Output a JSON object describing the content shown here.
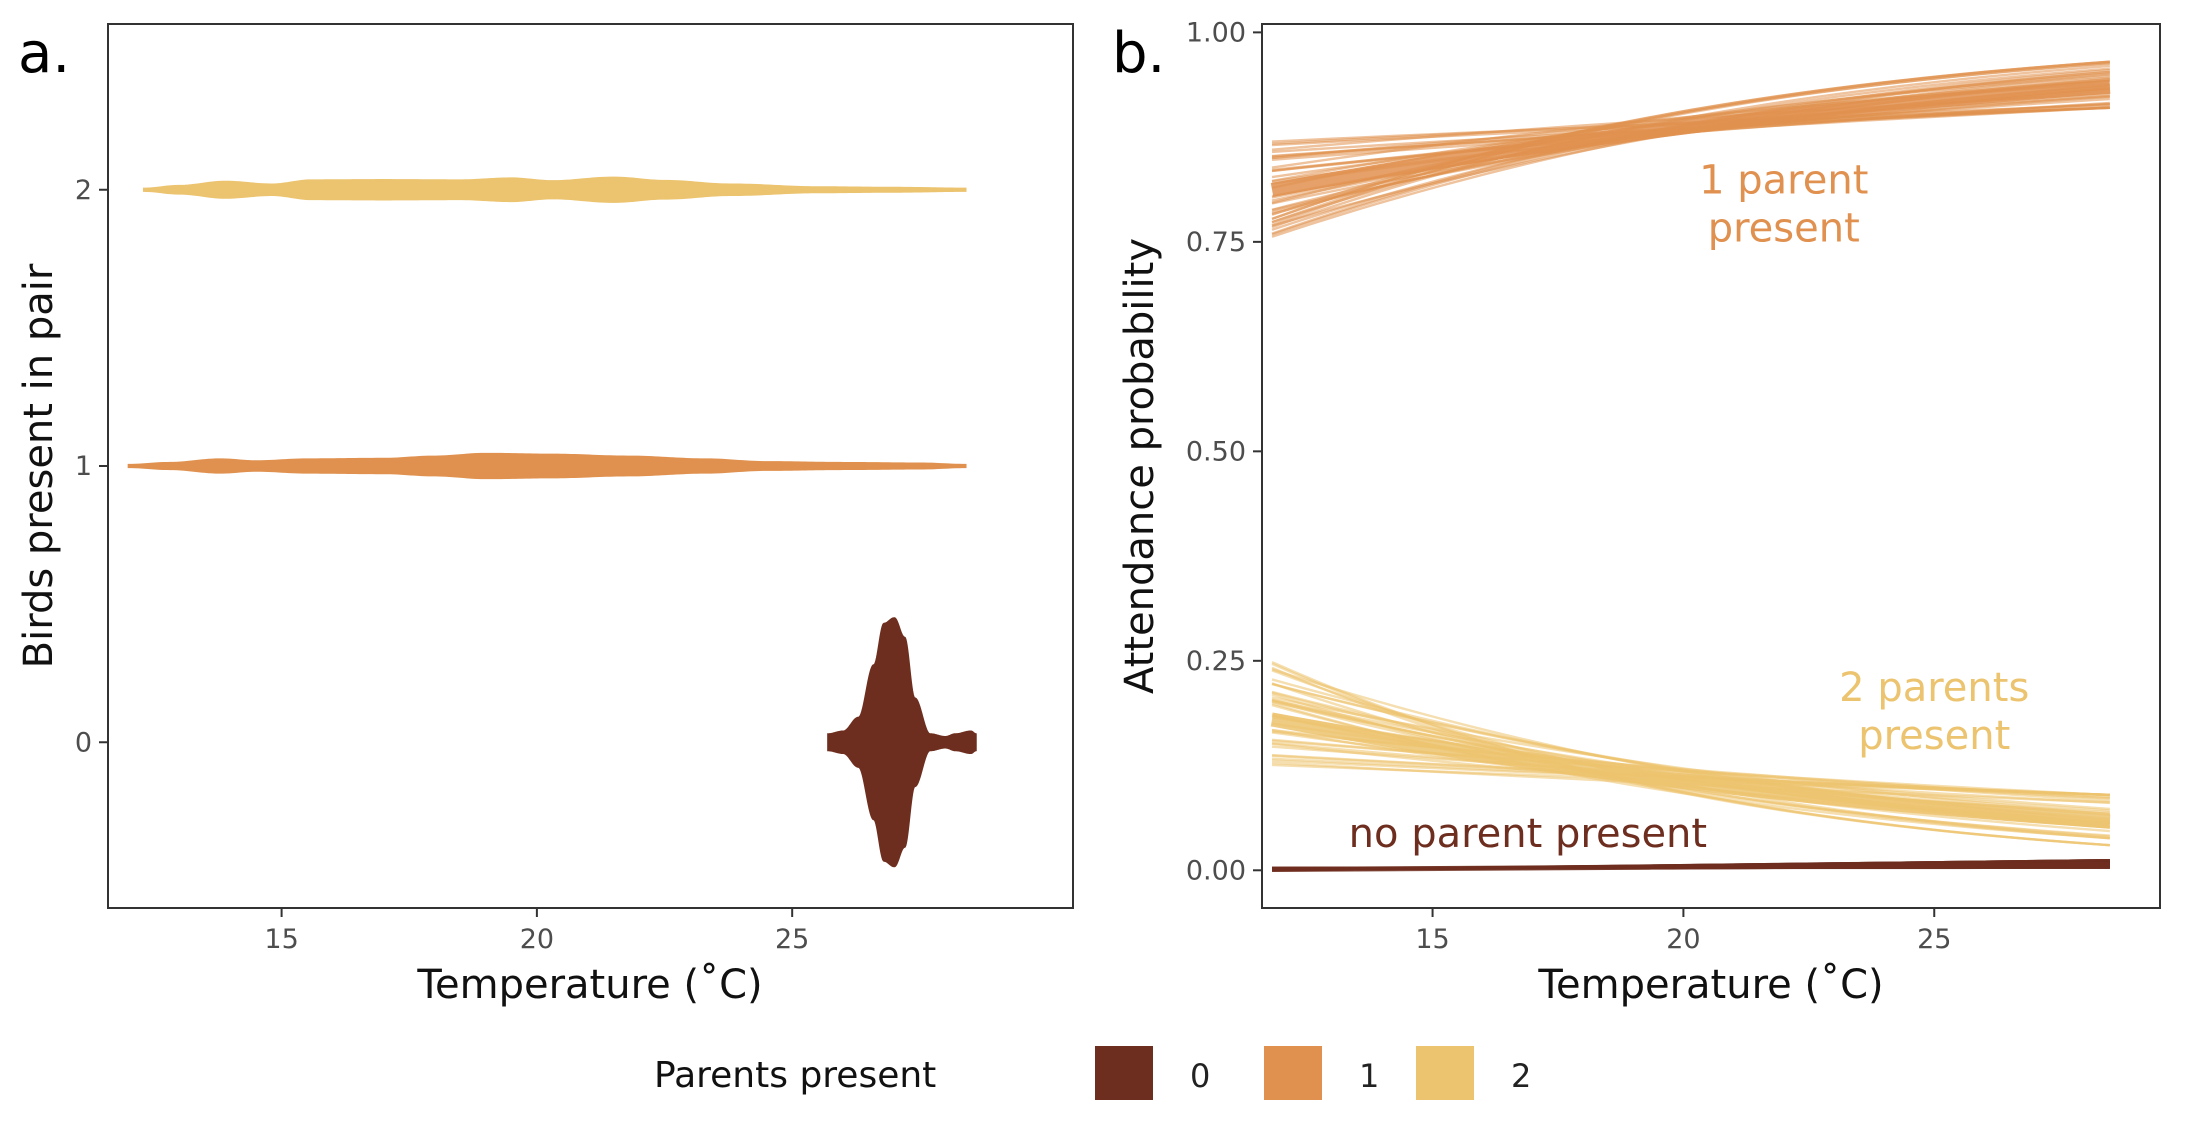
{
  "colors": {
    "p0": "#6e2e1f",
    "p1": "#e0914f",
    "p2": "#ecc36e",
    "axis": "#333333",
    "tick_text": "#4d4d4d"
  },
  "legend": {
    "title": "Parents present",
    "items": [
      {
        "label": "0",
        "color": "#6e2e1f"
      },
      {
        "label": "1",
        "color": "#e0914f"
      },
      {
        "label": "2",
        "color": "#ecc36e"
      }
    ]
  },
  "chart_data": [
    {
      "type": "violin",
      "tag": "a.",
      "xlabel": "Temperature (˚C)",
      "ylabel": "Birds present in pair",
      "xlim": [
        11.6,
        30.5
      ],
      "ylim": [
        -0.6,
        2.6
      ],
      "xticks": [
        15,
        20,
        25
      ],
      "xtick_labels": [
        "15",
        "20",
        "25"
      ],
      "yticks": [
        0,
        1,
        2
      ],
      "ytick_labels": [
        "0",
        "1",
        "2"
      ],
      "grid": false,
      "series": [
        {
          "name": "0",
          "y": 0,
          "color": "#6e2e1f",
          "width_scale": 1.0,
          "profile": [
            [
              25.7,
              0.03
            ],
            [
              26.0,
              0.04
            ],
            [
              26.3,
              0.09
            ],
            [
              26.6,
              0.28
            ],
            [
              26.8,
              0.43
            ],
            [
              27.0,
              0.45
            ],
            [
              27.2,
              0.38
            ],
            [
              27.4,
              0.16
            ],
            [
              27.7,
              0.03
            ],
            [
              28.0,
              0.02
            ],
            [
              28.2,
              0.03
            ],
            [
              28.5,
              0.04
            ],
            [
              28.6,
              0.03
            ]
          ]
        },
        {
          "name": "1",
          "y": 1,
          "color": "#e0914f",
          "width_scale": 1.0,
          "profile": [
            [
              12.0,
              0.005
            ],
            [
              12.8,
              0.012
            ],
            [
              13.8,
              0.025
            ],
            [
              14.5,
              0.018
            ],
            [
              15.5,
              0.025
            ],
            [
              17.0,
              0.027
            ],
            [
              18.0,
              0.035
            ],
            [
              19.0,
              0.045
            ],
            [
              20.3,
              0.042
            ],
            [
              21.8,
              0.035
            ],
            [
              23.3,
              0.025
            ],
            [
              24.5,
              0.015
            ],
            [
              26.0,
              0.012
            ],
            [
              27.5,
              0.01
            ],
            [
              28.4,
              0.005
            ]
          ]
        },
        {
          "name": "2",
          "y": 2,
          "color": "#ecc36e",
          "width_scale": 1.0,
          "profile": [
            [
              12.3,
              0.005
            ],
            [
              13.0,
              0.015
            ],
            [
              13.9,
              0.03
            ],
            [
              14.8,
              0.02
            ],
            [
              15.6,
              0.035
            ],
            [
              17.0,
              0.036
            ],
            [
              18.5,
              0.035
            ],
            [
              19.5,
              0.042
            ],
            [
              20.3,
              0.032
            ],
            [
              21.5,
              0.045
            ],
            [
              22.5,
              0.033
            ],
            [
              23.8,
              0.02
            ],
            [
              25.5,
              0.01
            ],
            [
              27.0,
              0.008
            ],
            [
              28.4,
              0.005
            ]
          ]
        }
      ]
    },
    {
      "type": "line",
      "tag": "b.",
      "xlabel": "Temperature (˚C)",
      "ylabel": "Attendance probability",
      "xlim": [
        11.6,
        29.5
      ],
      "ylim": [
        -0.045,
        1.01
      ],
      "xticks": [
        15,
        20,
        25
      ],
      "xtick_labels": [
        "15",
        "20",
        "25"
      ],
      "yticks": [
        0,
        0.25,
        0.5,
        0.75,
        1.0
      ],
      "ytick_labels": [
        "0.00",
        "0.25",
        "0.50",
        "0.75",
        "1.00"
      ],
      "grid": false,
      "x_range": [
        11.8,
        28.5
      ],
      "draws_per_series": 40,
      "series": [
        {
          "name": "1",
          "color": "#e0914f",
          "start": [
            0.755,
            0.875
          ],
          "end": [
            0.91,
            0.965
          ],
          "mean": [
            0.812,
            0.935
          ]
        },
        {
          "name": "2",
          "color": "#ecc36e",
          "start": [
            0.125,
            0.25
          ],
          "end": [
            0.03,
            0.09
          ],
          "mean": [
            0.18,
            0.058
          ]
        },
        {
          "name": "0",
          "color": "#6e2e1f",
          "start": [
            0.0,
            0.003
          ],
          "end": [
            0.003,
            0.012
          ],
          "mean": [
            0.001,
            0.007
          ]
        }
      ],
      "annotations": [
        {
          "lines": [
            "1 parent",
            "present"
          ],
          "x": 22.0,
          "y": 0.808,
          "color": "#e0914f"
        },
        {
          "lines": [
            "2 parents",
            "present"
          ],
          "x": 25.0,
          "y": 0.202,
          "color": "#ecc36e"
        },
        {
          "lines": [
            "no parent present"
          ],
          "x": 16.9,
          "y": 0.028,
          "color": "#6e2e1f"
        }
      ]
    }
  ]
}
